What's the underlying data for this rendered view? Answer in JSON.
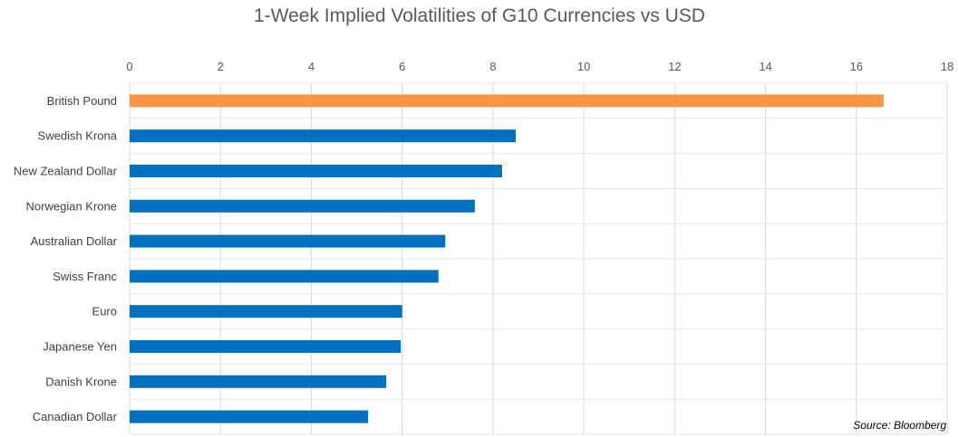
{
  "chart_data": {
    "type": "bar",
    "orientation": "horizontal",
    "title": "1-Week Implied Volatilities of G10 Currencies vs USD",
    "categories": [
      "British Pound",
      "Swedish Krona",
      "New Zealand Dollar",
      "Norwegian Krone",
      "Australian Dollar",
      "Swiss Franc",
      "Euro",
      "Japanese Yen",
      "Danish Krone",
      "Canadian Dollar"
    ],
    "values": [
      16.6,
      8.5,
      8.2,
      7.6,
      6.95,
      6.8,
      6.0,
      5.97,
      5.65,
      5.25
    ],
    "xlim": [
      0,
      18
    ],
    "xticks": [
      "0",
      "2",
      "4",
      "6",
      "8",
      "10",
      "12",
      "14",
      "16",
      "18"
    ],
    "x_axis_position": "top",
    "grid": true,
    "bar_colors": [
      "#F79646",
      "#0070C0",
      "#0070C0",
      "#0070C0",
      "#0070C0",
      "#0070C0",
      "#0070C0",
      "#0070C0",
      "#0070C0",
      "#0070C0"
    ],
    "source": "Source: Bloomberg"
  }
}
